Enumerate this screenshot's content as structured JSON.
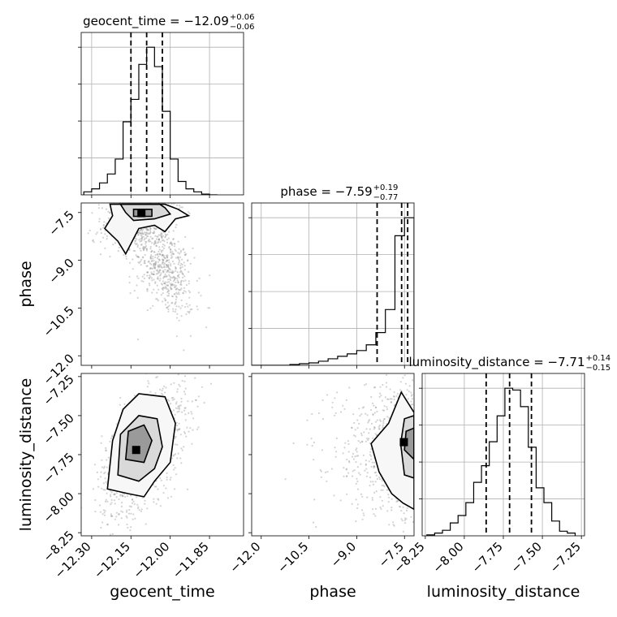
{
  "chart_data": {
    "type": "corner",
    "grid": true,
    "parameters": [
      {
        "name": "geocent_time",
        "label": "geocent_time",
        "title": "geocent_time = −12.09",
        "median": -12.09,
        "err_plus": "+0.06",
        "err_minus": "−0.06",
        "quantiles": [
          -12.15,
          -12.09,
          -12.03
        ],
        "range": [
          -12.34,
          -11.72
        ],
        "ticks": [
          -12.3,
          -12.15,
          -12.0,
          -11.85
        ],
        "tick_labels": [
          "−12.30",
          "−12.15",
          "−12.00",
          "−11.85"
        ],
        "hist": {
          "edges": [
            -12.33,
            -12.3,
            -12.27,
            -12.24,
            -12.21,
            -12.18,
            -12.15,
            -12.12,
            -12.09,
            -12.06,
            -12.03,
            -12.0,
            -11.97,
            -11.94,
            -11.91,
            -11.88,
            -11.85,
            -11.82
          ],
          "counts": [
            4,
            8,
            16,
            28,
            48,
            98,
            128,
            175,
            198,
            172,
            112,
            48,
            18,
            8,
            4,
            1,
            0
          ]
        }
      },
      {
        "name": "phase",
        "label": "phase",
        "title": "phase = −7.59",
        "median": -7.59,
        "err_plus": "+0.19",
        "err_minus": "−0.77",
        "quantiles": [
          -8.36,
          -7.59,
          -7.4
        ],
        "range": [
          -12.3,
          -7.2
        ],
        "ticks": [
          -12.0,
          -10.5,
          -9.0,
          -7.5
        ],
        "tick_labels": [
          "−12.0",
          "−10.5",
          "−9.0",
          "−7.5"
        ],
        "hist": {
          "edges": [
            -12.3,
            -12.0,
            -11.7,
            -11.4,
            -11.1,
            -10.8,
            -10.5,
            -10.2,
            -9.9,
            -9.6,
            -9.3,
            -9.0,
            -8.7,
            -8.4,
            -8.1,
            -7.8,
            -7.5,
            -7.2
          ],
          "counts": [
            0,
            0,
            0,
            0,
            1,
            2,
            3,
            5,
            8,
            11,
            14,
            18,
            25,
            40,
            68,
            158,
            180
          ]
        }
      },
      {
        "name": "luminosity_distance",
        "label": "luminosity_distance",
        "title": "luminosity_distance = −7.71",
        "median": -7.71,
        "err_plus": "+0.14",
        "err_minus": "−0.15",
        "quantiles": [
          -7.86,
          -7.71,
          -7.57
        ],
        "range": [
          -8.27,
          -7.23
        ],
        "ticks": [
          -8.25,
          -8.0,
          -7.75,
          -7.5,
          -7.25
        ],
        "tick_labels": [
          "−8.25",
          "−8.00",
          "−7.75",
          "−7.50",
          "−7.25"
        ],
        "hist": {
          "edges": [
            -8.24,
            -8.19,
            -8.14,
            -8.09,
            -8.04,
            -7.99,
            -7.94,
            -7.89,
            -7.84,
            -7.79,
            -7.74,
            -7.69,
            -7.64,
            -7.59,
            -7.54,
            -7.49,
            -7.44,
            -7.39,
            -7.34,
            -7.29
          ],
          "counts": [
            1,
            3,
            6,
            14,
            22,
            36,
            58,
            76,
            102,
            130,
            160,
            158,
            140,
            96,
            52,
            36,
            16,
            5,
            3
          ]
        }
      }
    ],
    "pairs": [
      {
        "x": "geocent_time",
        "y": "phase",
        "peak": [
          -12.11,
          -7.52
        ],
        "contours": [
          [
            [
              -12.23,
              -7.24
            ],
            [
              -12.22,
              -7.6
            ],
            [
              -12.25,
              -8.0
            ],
            [
              -12.2,
              -8.4
            ],
            [
              -12.17,
              -8.8
            ],
            [
              -12.12,
              -8.0
            ],
            [
              -12.06,
              -7.9
            ],
            [
              -12.02,
              -8.1
            ],
            [
              -11.98,
              -7.7
            ],
            [
              -11.93,
              -7.6
            ],
            [
              -11.97,
              -7.4
            ],
            [
              -12.02,
              -7.24
            ]
          ],
          [
            [
              -12.19,
              -7.24
            ],
            [
              -12.17,
              -7.5
            ],
            [
              -12.14,
              -7.75
            ],
            [
              -12.06,
              -7.7
            ],
            [
              -12.0,
              -7.55
            ],
            [
              -12.02,
              -7.35
            ],
            [
              -12.04,
              -7.24
            ]
          ],
          [
            [
              -12.14,
              -7.4
            ],
            [
              -12.14,
              -7.62
            ],
            [
              -12.07,
              -7.62
            ],
            [
              -12.07,
              -7.4
            ]
          ]
        ],
        "samples": {
          "count": 1200,
          "mode_a": {
            "center": [
              -12.12,
              -7.6
            ],
            "spread": [
              0.07,
              0.5
            ],
            "corr": 0.3
          },
          "mode_b": {
            "center": [
              -12.03,
              -9.2
            ],
            "spread": [
              0.06,
              0.8
            ],
            "corr": -0.5
          }
        }
      },
      {
        "x": "geocent_time",
        "y": "luminosity_distance",
        "peak": [
          -12.13,
          -7.72
        ],
        "contours": [
          [
            [
              -12.24,
              -7.97
            ],
            [
              -12.22,
              -7.66
            ],
            [
              -12.18,
              -7.46
            ],
            [
              -12.12,
              -7.36
            ],
            [
              -12.02,
              -7.38
            ],
            [
              -11.98,
              -7.55
            ],
            [
              -12.0,
              -7.8
            ],
            [
              -12.06,
              -7.92
            ],
            [
              -12.1,
              -8.02
            ],
            [
              -12.16,
              -8.0
            ]
          ],
          [
            [
              -12.2,
              -7.88
            ],
            [
              -12.19,
              -7.62
            ],
            [
              -12.12,
              -7.5
            ],
            [
              -12.05,
              -7.52
            ],
            [
              -12.03,
              -7.7
            ],
            [
              -12.06,
              -7.84
            ],
            [
              -12.12,
              -7.92
            ]
          ],
          [
            [
              -12.17,
              -7.78
            ],
            [
              -12.16,
              -7.6
            ],
            [
              -12.1,
              -7.56
            ],
            [
              -12.07,
              -7.66
            ],
            [
              -12.1,
              -7.8
            ]
          ]
        ],
        "samples": {
          "count": 1200,
          "mode_a": {
            "center": [
              -12.1,
              -7.72
            ],
            "spread": [
              0.08,
              0.2
            ],
            "corr": 0.55
          },
          "mode_b": {
            "center": [
              -12.1,
              -7.72
            ],
            "spread": [
              0.08,
              0.2
            ],
            "corr": 0.55
          }
        }
      },
      {
        "x": "phase",
        "y": "luminosity_distance",
        "peak": [
          -7.52,
          -7.67
        ],
        "contours": [
          [
            [
              -7.2,
              -7.48
            ],
            [
              -7.6,
              -7.35
            ],
            [
              -8.0,
              -7.55
            ],
            [
              -8.55,
              -7.68
            ],
            [
              -8.3,
              -7.86
            ],
            [
              -7.9,
              -8.0
            ],
            [
              -7.55,
              -8.06
            ],
            [
              -7.2,
              -8.1
            ]
          ],
          [
            [
              -7.2,
              -7.5
            ],
            [
              -7.5,
              -7.52
            ],
            [
              -7.62,
              -7.68
            ],
            [
              -7.5,
              -7.88
            ],
            [
              -7.2,
              -7.9
            ]
          ],
          [
            [
              -7.2,
              -7.58
            ],
            [
              -7.45,
              -7.6
            ],
            [
              -7.5,
              -7.72
            ],
            [
              -7.2,
              -7.78
            ]
          ]
        ],
        "samples": {
          "count": 1200,
          "mode_a": {
            "center": [
              -7.9,
              -7.72
            ],
            "spread": [
              1.0,
              0.2
            ],
            "corr": 0.0
          },
          "mode_b": {
            "center": [
              -7.6,
              -7.72
            ],
            "spread": [
              0.3,
              0.18
            ],
            "corr": 0.0
          }
        }
      }
    ]
  }
}
